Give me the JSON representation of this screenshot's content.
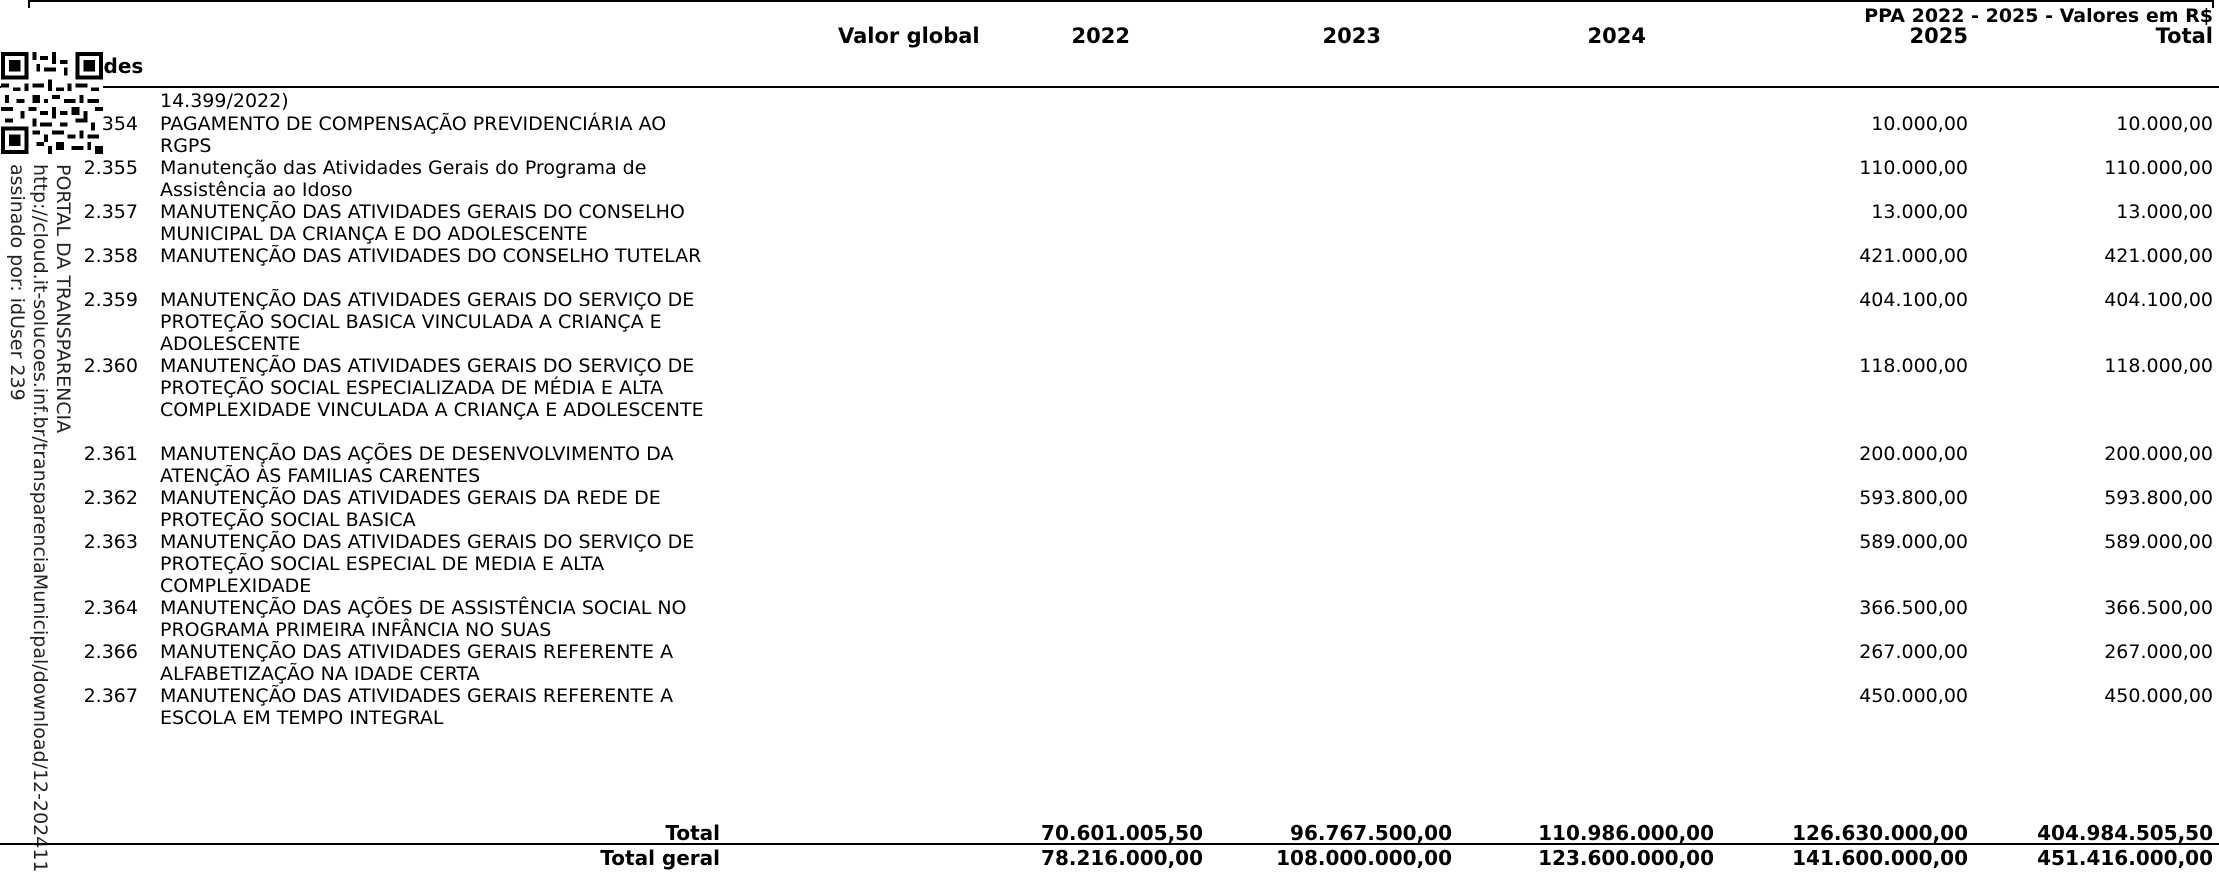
{
  "header": {
    "ppa_title": "PPA 2022 - 2025 - Valores em R$",
    "col_valor_global": "Valor global",
    "col_2022": "2022",
    "col_2023": "2023",
    "col_2024": "2024",
    "col_2025": "2025",
    "col_total": "Total",
    "section_label": "ades"
  },
  "stamp": {
    "line1": "PORTAL DA TRANSPARENCIA",
    "line2": "http://cloud.it-solucoes.inf.br/transparenciaMunicipal/download/12-202411",
    "line3": "assinado por: idUser 239"
  },
  "continuation": {
    "text": "14.399/2022)"
  },
  "rows": [
    {
      "code": "354",
      "desc": "PAGAMENTO DE COMPENSAÇÃO PREVIDENCIÁRIA AO RGPS",
      "v2025": "10.000,00",
      "total": "10.000,00"
    },
    {
      "code": "2.355",
      "desc": " Manutenção das Atividades Gerais do Programa de Assistência ao Idoso",
      "v2025": "110.000,00",
      "total": "110.000,00"
    },
    {
      "code": "2.357",
      "desc": "MANUTENÇÃO DAS ATIVIDADES GERAIS DO CONSELHO MUNICIPAL DA CRIANÇA E DO ADOLESCENTE",
      "v2025": "13.000,00",
      "total": "13.000,00"
    },
    {
      "code": "2.358",
      "desc": "MANUTENÇÃO DAS ATIVIDADES DO CONSELHO TUTELAR",
      "v2025": "421.000,00",
      "total": "421.000,00"
    },
    {
      "code": "2.359",
      "desc": "MANUTENÇÃO DAS ATIVIDADES GERAIS DO SERVIÇO DE PROTEÇÃO SOCIAL BASICA VINCULADA A CRIANÇA E ADOLESCENTE",
      "v2025": "404.100,00",
      "total": "404.100,00"
    },
    {
      "code": "2.360",
      "desc": "MANUTENÇÃO DAS ATIVIDADES GERAIS  DO SERVIÇO DE PROTEÇÃO SOCIAL ESPECIALIZADA DE MÉDIA E ALTA COMPLEXIDADE VINCULADA A CRIANÇA E ADOLESCENTE",
      "v2025": "118.000,00",
      "total": "118.000,00"
    },
    {
      "code": "2.361",
      "desc": "MANUTENÇÃO DAS AÇÕES DE DESENVOLVIMENTO DA ATENÇÃO ÀS FAMILIAS CARENTES",
      "v2025": "200.000,00",
      "total": "200.000,00"
    },
    {
      "code": "2.362",
      "desc": "MANUTENÇÃO DAS ATIVIDADES GERAIS DA REDE DE PROTEÇÃO SOCIAL BASICA",
      "v2025": "593.800,00",
      "total": "593.800,00"
    },
    {
      "code": "2.363",
      "desc": " MANUTENÇÃO DAS ATIVIDADES GERAIS DO SERVIÇO DE PROTEÇÃO SOCIAL ESPECIAL DE MEDIA E ALTA COMPLEXIDADE",
      "v2025": "589.000,00",
      "total": "589.000,00"
    },
    {
      "code": "2.364",
      "desc": "MANUTENÇÃO DAS AÇÕES DE ASSISTÊNCIA SOCIAL NO PROGRAMA PRIMEIRA INFÂNCIA NO SUAS",
      "v2025": "366.500,00",
      "total": "366.500,00"
    },
    {
      "code": "2.366",
      "desc": "MANUTENÇÃO DAS ATIVIDADES GERAIS REFERENTE A ALFABETIZAÇÃO NA IDADE CERTA",
      "v2025": "267.000,00",
      "total": "267.000,00"
    },
    {
      "code": "2.367",
      "desc": "MANUTENÇÃO DAS ATIVIDADES GERAIS REFERENTE A ESCOLA EM TEMPO INTEGRAL",
      "v2025": "450.000,00",
      "total": "450.000,00"
    }
  ],
  "total": {
    "label": "Total",
    "valor_global": "70.601.005,50",
    "y2023": "96.767.500,00",
    "y2024": "110.986.000,00",
    "y2025": "126.630.000,00",
    "total": "404.984.505,50"
  },
  "total_geral": {
    "label": "Total geral",
    "valor_global": "78.216.000,00",
    "y2023": "108.000.000,00",
    "y2024": "123.600.000,00",
    "y2025": "141.600.000,00",
    "total": "451.416.000,00"
  }
}
